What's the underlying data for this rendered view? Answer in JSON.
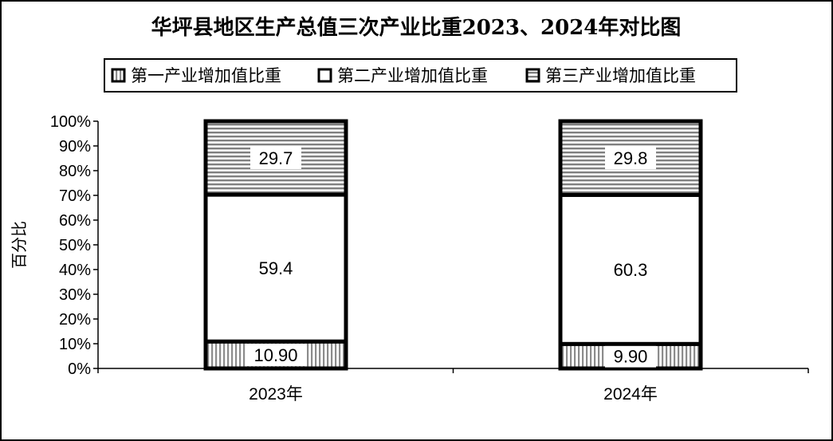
{
  "chart_data": {
    "type": "bar",
    "stacked": true,
    "title": "华坪县地区生产总值三次产业比重2023、2024年对比图",
    "ylabel": "百分比",
    "xlabel": "",
    "ylim": [
      0,
      100
    ],
    "yticks": [
      "0%",
      "10%",
      "20%",
      "30%",
      "40%",
      "50%",
      "60%",
      "70%",
      "80%",
      "90%",
      "100%"
    ],
    "categories": [
      "2023年",
      "2024年"
    ],
    "legend_position": "top",
    "grid": false,
    "series": [
      {
        "name": "第一产业增加值比重",
        "values": [
          10.9,
          9.9
        ],
        "labels": [
          "10.90",
          "9.90"
        ],
        "pattern": "vertical-stripes"
      },
      {
        "name": "第二产业增加值比重",
        "values": [
          59.4,
          60.3
        ],
        "labels": [
          "59.4",
          "60.3"
        ],
        "pattern": "white"
      },
      {
        "name": "第三产业增加值比重",
        "values": [
          29.7,
          29.8
        ],
        "labels": [
          "29.7",
          "29.8"
        ],
        "pattern": "horizontal-stripes"
      }
    ],
    "colors": {
      "border": "#000000",
      "stripe": "#8c8c8c",
      "background": "#ffffff"
    }
  }
}
